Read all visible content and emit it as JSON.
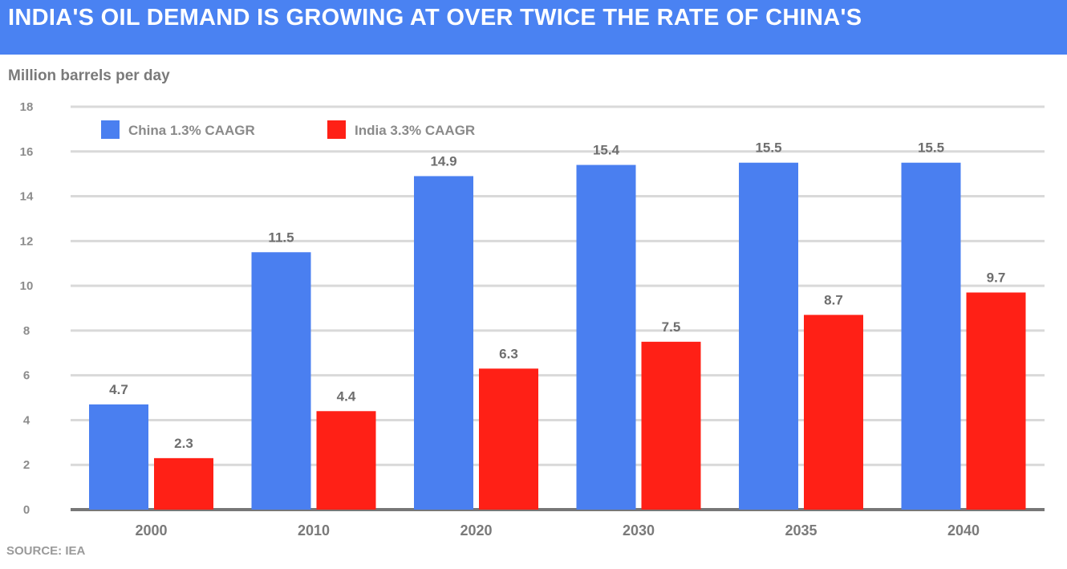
{
  "title": "INDIA'S OIL DEMAND IS GROWING AT OVER TWICE THE RATE OF CHINA'S",
  "subtitle": "Million barrels per day",
  "source": "SOURCE: IEA",
  "colors": {
    "banner": "#4a82f2",
    "china": "#4a7ff0",
    "india": "#ff2016"
  },
  "chart_data": {
    "type": "bar",
    "categories": [
      "2000",
      "2010",
      "2020",
      "2030",
      "2035",
      "2040"
    ],
    "series": [
      {
        "name": "China 1.3% CAAGR",
        "color": "#4a7ff0",
        "values": [
          4.7,
          11.5,
          14.9,
          15.4,
          15.5,
          15.5
        ],
        "labels": [
          "4.7",
          "11.5",
          "14.9",
          "15.4",
          "15.5",
          "15.5"
        ]
      },
      {
        "name": "India 3.3% CAAGR",
        "color": "#ff2016",
        "values": [
          2.3,
          4.4,
          6.3,
          7.5,
          8.7,
          9.7
        ],
        "labels": [
          "2.3",
          "4.4",
          "6.3",
          "7.5",
          "8.7",
          "9.7"
        ]
      }
    ],
    "ylim": [
      0,
      18
    ],
    "yticks": [
      0,
      2,
      4,
      6,
      8,
      10,
      12,
      14,
      16,
      18
    ],
    "ylabel": "Million barrels per day",
    "xlabel": "",
    "grid": true,
    "legend": "top-left"
  }
}
